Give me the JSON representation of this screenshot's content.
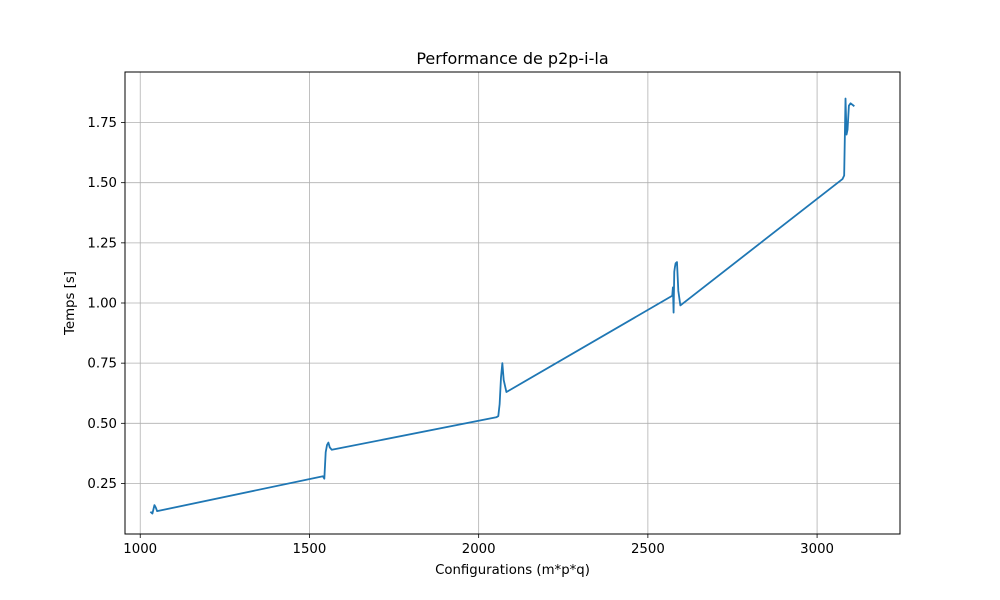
{
  "chart_data": {
    "type": "line",
    "title": "Performance de p2p-i-la",
    "xlabel": "Configurations (m*p*q)",
    "ylabel": "Temps [s]",
    "xlim": [
      955,
      3245
    ],
    "ylim": [
      0.04,
      1.96
    ],
    "xticks": [
      1000,
      1500,
      2000,
      2500,
      3000
    ],
    "xtick_labels": [
      "1000",
      "1500",
      "2000",
      "2500",
      "3000"
    ],
    "yticks": [
      0.25,
      0.5,
      0.75,
      1.0,
      1.25,
      1.5,
      1.75
    ],
    "ytick_labels": [
      "0.25",
      "0.50",
      "0.75",
      "1.00",
      "1.25",
      "1.50",
      "1.75"
    ],
    "grid": true,
    "line_color": "#1f77b4",
    "series": [
      {
        "x": [
          1032,
          1036,
          1042,
          1046,
          1050,
          1540,
          1544,
          1548,
          1552,
          1556,
          1560,
          1566,
          2052,
          2058,
          2062,
          2066,
          2070,
          2074,
          2082,
          2572,
          2574,
          2576,
          2578,
          2580,
          2582,
          2586,
          2590,
          2596,
          3075,
          3080,
          3084,
          3087,
          3090,
          3094,
          3099,
          3108
        ],
        "y": [
          0.13,
          0.125,
          0.16,
          0.15,
          0.135,
          0.28,
          0.27,
          0.38,
          0.41,
          0.42,
          0.4,
          0.39,
          0.525,
          0.53,
          0.58,
          0.69,
          0.75,
          0.68,
          0.63,
          1.03,
          1.065,
          0.96,
          1.13,
          1.15,
          1.165,
          1.17,
          1.05,
          0.99,
          1.515,
          1.53,
          1.85,
          1.7,
          1.72,
          1.82,
          1.83,
          1.82
        ]
      }
    ]
  }
}
